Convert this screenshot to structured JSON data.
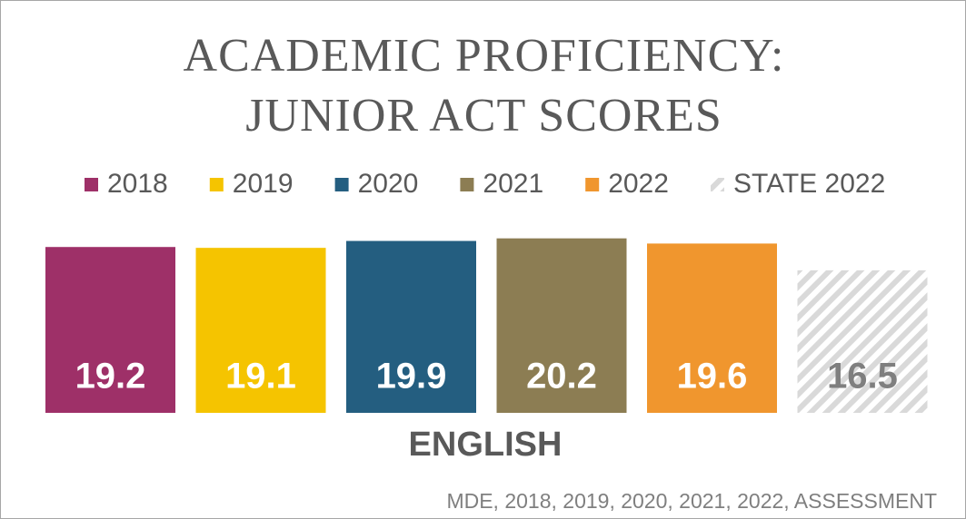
{
  "chart_data": {
    "type": "bar",
    "title": "ACADEMIC PROFICIENCY: JUNIOR ACT SCORES",
    "categories": [
      "ENGLISH"
    ],
    "series": [
      {
        "name": "2018",
        "color": "#9e3068",
        "values": [
          19.2
        ]
      },
      {
        "name": "2019",
        "color": "#f5c400",
        "values": [
          19.1
        ]
      },
      {
        "name": "2020",
        "color": "#245e80",
        "values": [
          19.9
        ]
      },
      {
        "name": "2021",
        "color": "#8c7d53",
        "values": [
          20.2
        ]
      },
      {
        "name": "2022",
        "color": "#f0962e",
        "values": [
          19.6
        ]
      },
      {
        "name": "STATE 2022",
        "color": "#d9d9d9",
        "pattern": "hatch",
        "values": [
          16.5
        ]
      }
    ],
    "source": "MDE, 2018, 2019, 2020, 2021, 2022, ASSESSMENT"
  }
}
